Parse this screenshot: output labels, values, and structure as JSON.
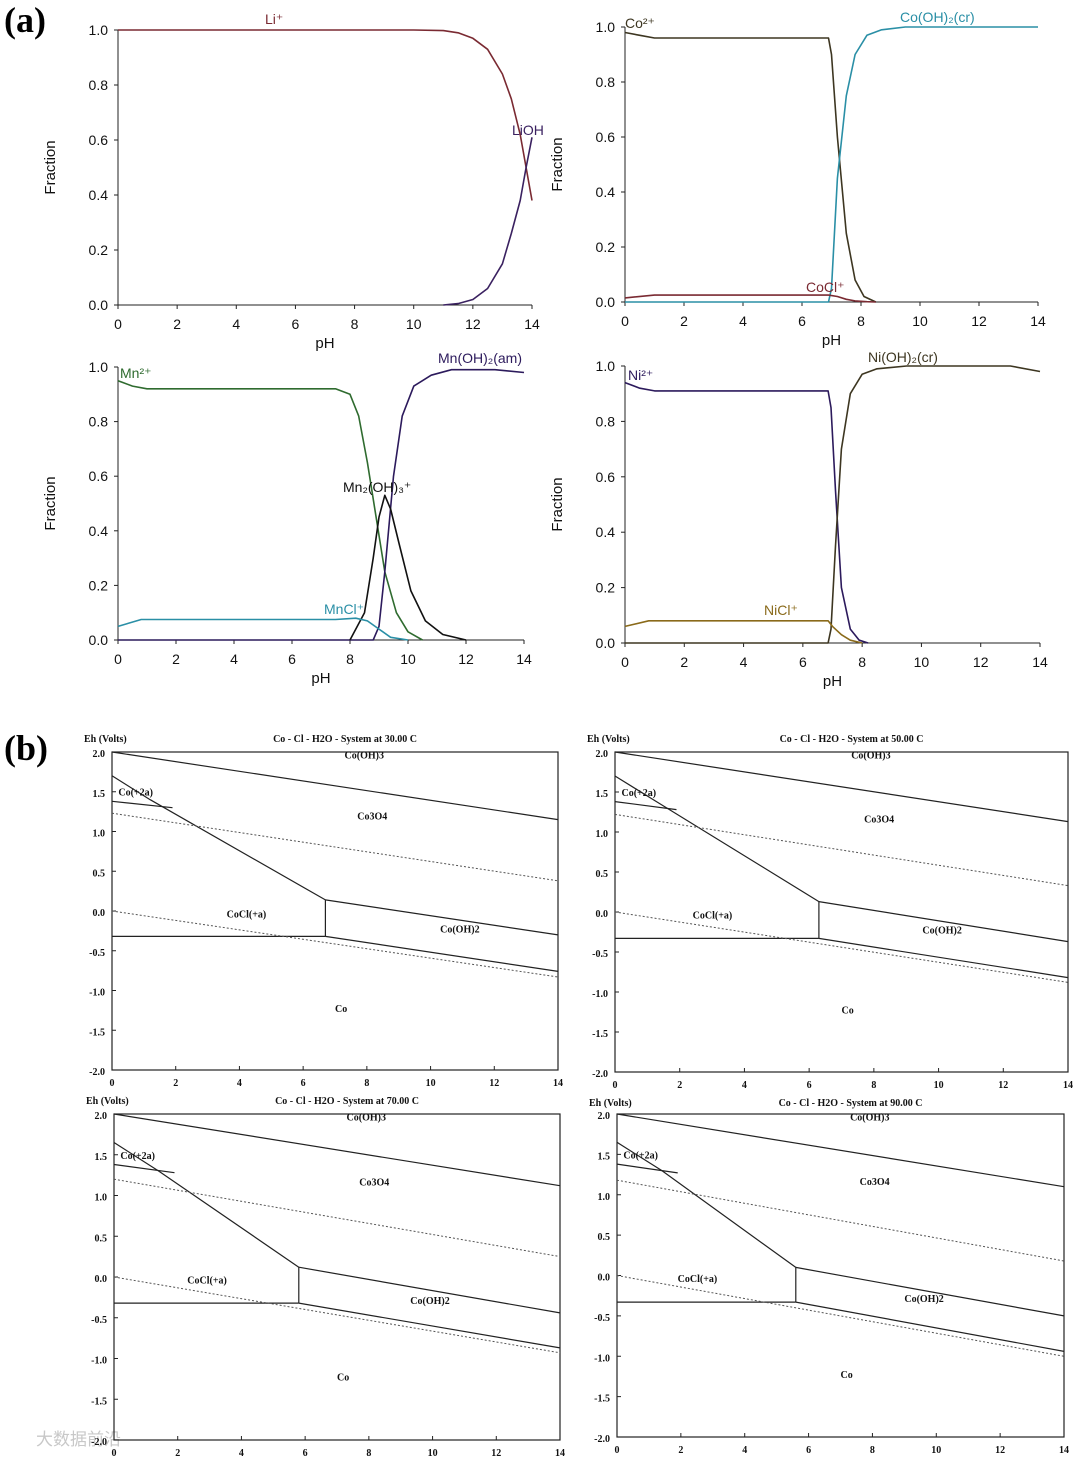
{
  "figure": {
    "panel_a_label": "(a)",
    "panel_b_label": "(b)",
    "watermark": "大数据前沿"
  },
  "chart_data": [
    {
      "id": "a1",
      "type": "line",
      "xlabel": "pH",
      "ylabel": "Fraction",
      "xlim": [
        0,
        14
      ],
      "ylim": [
        0,
        1
      ],
      "xticks": [
        "0",
        "2",
        "4",
        "6",
        "8",
        "10",
        "12",
        "14"
      ],
      "yticks": [
        "0.0",
        "0.2",
        "0.4",
        "0.6",
        "0.8",
        "1.0"
      ],
      "series": [
        {
          "name": "Li⁺",
          "color": "#7a2a32",
          "x": [
            0,
            10,
            11,
            11.5,
            12,
            12.5,
            13,
            13.3,
            13.6,
            13.8,
            14
          ],
          "y": [
            1.0,
            1.0,
            0.998,
            0.99,
            0.97,
            0.93,
            0.84,
            0.75,
            0.62,
            0.5,
            0.38
          ]
        },
        {
          "name": "LiOH",
          "color": "#3a2160",
          "x": [
            11,
            11.5,
            12,
            12.5,
            13,
            13.3,
            13.6,
            13.8,
            14
          ],
          "y": [
            0.0,
            0.005,
            0.02,
            0.06,
            0.15,
            0.26,
            0.38,
            0.5,
            0.61
          ]
        }
      ]
    },
    {
      "id": "a2",
      "type": "line",
      "xlabel": "pH",
      "ylabel": "Fraction",
      "xlim": [
        0,
        14
      ],
      "ylim": [
        0,
        1
      ],
      "xticks": [
        "0",
        "2",
        "4",
        "6",
        "8",
        "10",
        "12",
        "14"
      ],
      "yticks": [
        "0.0",
        "0.2",
        "0.4",
        "0.6",
        "0.8",
        "1.0"
      ],
      "series": [
        {
          "name": "Co²⁺",
          "color": "#3d3621",
          "x": [
            0,
            0.5,
            1,
            6.9,
            7.0,
            7.2,
            7.5,
            7.8,
            8.1,
            8.5
          ],
          "y": [
            0.98,
            0.97,
            0.96,
            0.96,
            0.9,
            0.6,
            0.25,
            0.08,
            0.02,
            0.0
          ]
        },
        {
          "name": "Co(OH)₂(cr)",
          "color": "#2a8fa6",
          "x": [
            0,
            6.9,
            7.0,
            7.2,
            7.5,
            7.8,
            8.2,
            8.7,
            9.5,
            14
          ],
          "y": [
            0.0,
            0.0,
            0.05,
            0.45,
            0.75,
            0.9,
            0.97,
            0.99,
            1.0,
            1.0
          ]
        },
        {
          "name": "CoCl⁺",
          "color": "#7a2a32",
          "x": [
            0,
            1,
            6.9,
            7.2,
            7.5,
            7.8,
            8.2,
            8.5
          ],
          "y": [
            0.015,
            0.025,
            0.025,
            0.02,
            0.01,
            0.004,
            0.001,
            0.0
          ]
        }
      ]
    },
    {
      "id": "a3",
      "type": "line",
      "xlabel": "pH",
      "ylabel": "Fraction",
      "xlim": [
        0,
        14
      ],
      "ylim": [
        0,
        1
      ],
      "xticks": [
        "0",
        "2",
        "4",
        "6",
        "8",
        "10",
        "12",
        "14"
      ],
      "yticks": [
        "0.0",
        "0.2",
        "0.4",
        "0.6",
        "0.8",
        "1.0"
      ],
      "series": [
        {
          "name": "Mn²⁺",
          "color": "#2f6b2f",
          "x": [
            0,
            0.5,
            1,
            7.5,
            8,
            8.3,
            8.6,
            8.9,
            9.2,
            9.6,
            10,
            10.5
          ],
          "y": [
            0.95,
            0.93,
            0.92,
            0.92,
            0.9,
            0.82,
            0.65,
            0.45,
            0.25,
            0.1,
            0.03,
            0.0
          ]
        },
        {
          "name": "Mn(OH)₂(am)",
          "color": "#2c1a5c",
          "x": [
            0,
            8.8,
            9.0,
            9.2,
            9.5,
            9.8,
            10.2,
            10.8,
            11.5,
            13,
            14
          ],
          "y": [
            0.0,
            0.0,
            0.05,
            0.25,
            0.6,
            0.82,
            0.93,
            0.97,
            0.99,
            0.99,
            0.98
          ]
        },
        {
          "name": "Mn₂(OH)₃⁺",
          "color": "#111111",
          "x": [
            8,
            8.5,
            8.8,
            9.0,
            9.2,
            9.4,
            9.7,
            10.1,
            10.6,
            11.2,
            12
          ],
          "y": [
            0.0,
            0.1,
            0.3,
            0.45,
            0.53,
            0.48,
            0.35,
            0.18,
            0.07,
            0.02,
            0.0
          ]
        },
        {
          "name": "MnCl⁺",
          "color": "#2a8fa6",
          "x": [
            0,
            0.8,
            7.5,
            8.2,
            8.6,
            9.0,
            9.4,
            10
          ],
          "y": [
            0.05,
            0.075,
            0.075,
            0.08,
            0.07,
            0.04,
            0.01,
            0.0
          ]
        }
      ]
    },
    {
      "id": "a4",
      "type": "line",
      "xlabel": "pH",
      "ylabel": "Fraction",
      "xlim": [
        0,
        14
      ],
      "ylim": [
        0,
        1
      ],
      "xticks": [
        "0",
        "2",
        "4",
        "6",
        "8",
        "10",
        "12",
        "14"
      ],
      "yticks": [
        "0.0",
        "0.2",
        "0.4",
        "0.6",
        "0.8",
        "1.0"
      ],
      "series": [
        {
          "name": "Ni²⁺",
          "color": "#2c1a5c",
          "x": [
            0,
            0.5,
            1,
            6.85,
            6.95,
            7.1,
            7.3,
            7.6,
            7.9,
            8.2
          ],
          "y": [
            0.94,
            0.92,
            0.91,
            0.91,
            0.85,
            0.55,
            0.2,
            0.05,
            0.01,
            0.0
          ]
        },
        {
          "name": "Ni(OH)₂(cr)",
          "color": "#3d3621",
          "x": [
            0,
            6.85,
            6.95,
            7.1,
            7.3,
            7.6,
            8.0,
            8.5,
            9.5,
            13,
            14
          ],
          "y": [
            0.0,
            0.0,
            0.05,
            0.35,
            0.7,
            0.9,
            0.97,
            0.99,
            1.0,
            1.0,
            0.98
          ]
        },
        {
          "name": "NiCl⁺",
          "color": "#8a6a1a",
          "x": [
            0,
            0.8,
            6.85,
            7.0,
            7.3,
            7.6,
            8.0
          ],
          "y": [
            0.06,
            0.08,
            0.08,
            0.06,
            0.03,
            0.01,
            0.0
          ]
        }
      ]
    },
    {
      "id": "b1",
      "type": "line",
      "title": "Co - Cl - H2O - System at 30.00 C",
      "ylabel": "Eh (Volts)",
      "xlim": [
        0,
        14
      ],
      "ylim": [
        -2,
        2
      ],
      "xticks": [
        "0",
        "2",
        "4",
        "6",
        "8",
        "10",
        "12",
        "14"
      ],
      "yticks": [
        "2.0",
        "1.5",
        "1.0",
        "0.5",
        "0.0",
        "-0.5",
        "-1.0",
        "-1.5",
        "-2.0"
      ],
      "region_labels": [
        {
          "text": "Co(OH)3",
          "x": 7.3,
          "y": 1.92
        },
        {
          "text": "Co(+2a)",
          "x": 0.2,
          "y": 1.45
        },
        {
          "text": "Co3O4",
          "x": 7.7,
          "y": 1.15
        },
        {
          "text": "CoCl(+a)",
          "x": 3.6,
          "y": -0.08
        },
        {
          "text": "Co(OH)2",
          "x": 10.3,
          "y": -0.27
        },
        {
          "text": "Co",
          "x": 7,
          "y": -1.27
        }
      ],
      "lines": [
        {
          "style": "solid",
          "x": [
            0,
            14
          ],
          "y": [
            2.0,
            1.15
          ]
        },
        {
          "style": "solid",
          "x": [
            0,
            1.2,
            6.7
          ],
          "y": [
            1.7,
            1.4,
            0.14
          ]
        },
        {
          "style": "solid",
          "x": [
            0,
            1.9
          ],
          "y": [
            1.38,
            1.3
          ]
        },
        {
          "style": "solid",
          "x": [
            6.7,
            14
          ],
          "y": [
            0.14,
            -0.3
          ]
        },
        {
          "style": "solid",
          "x": [
            6.7,
            6.7
          ],
          "y": [
            0.14,
            -0.32
          ]
        },
        {
          "style": "solid",
          "x": [
            0,
            6.7
          ],
          "y": [
            -0.32,
            -0.32
          ]
        },
        {
          "style": "solid",
          "x": [
            6.7,
            14
          ],
          "y": [
            -0.32,
            -0.76
          ]
        },
        {
          "style": "dotted",
          "x": [
            0,
            14
          ],
          "y": [
            1.23,
            0.38
          ]
        },
        {
          "style": "dotted",
          "x": [
            0,
            14
          ],
          "y": [
            0.0,
            -0.83
          ]
        }
      ]
    },
    {
      "id": "b2",
      "type": "line",
      "title": "Co - Cl - H2O - System at 50.00 C",
      "ylabel": "Eh (Volts)",
      "xlim": [
        0,
        14
      ],
      "ylim": [
        -2,
        2
      ],
      "xticks": [
        "0",
        "2",
        "4",
        "6",
        "8",
        "10",
        "12",
        "14"
      ],
      "yticks": [
        "2.0",
        "1.5",
        "1.0",
        "0.5",
        "0.0",
        "-0.5",
        "-1.0",
        "-1.5",
        "-2.0"
      ],
      "region_labels": [
        {
          "text": "Co(OH)3",
          "x": 7.3,
          "y": 1.92
        },
        {
          "text": "Co(+2a)",
          "x": 0.2,
          "y": 1.45
        },
        {
          "text": "Co3O4",
          "x": 7.7,
          "y": 1.12
        },
        {
          "text": "CoCl(+a)",
          "x": 2.4,
          "y": -0.08
        },
        {
          "text": "Co(OH)2",
          "x": 9.5,
          "y": -0.27
        },
        {
          "text": "Co",
          "x": 7,
          "y": -1.27
        }
      ],
      "lines": [
        {
          "style": "solid",
          "x": [
            0,
            14
          ],
          "y": [
            2.0,
            1.13
          ]
        },
        {
          "style": "solid",
          "x": [
            0,
            1.2,
            6.3
          ],
          "y": [
            1.7,
            1.4,
            0.13
          ]
        },
        {
          "style": "solid",
          "x": [
            0,
            1.9
          ],
          "y": [
            1.38,
            1.28
          ]
        },
        {
          "style": "solid",
          "x": [
            6.3,
            14
          ],
          "y": [
            0.13,
            -0.37
          ]
        },
        {
          "style": "solid",
          "x": [
            6.3,
            6.3
          ],
          "y": [
            0.13,
            -0.33
          ]
        },
        {
          "style": "solid",
          "x": [
            0,
            6.3
          ],
          "y": [
            -0.33,
            -0.33
          ]
        },
        {
          "style": "solid",
          "x": [
            6.3,
            14
          ],
          "y": [
            -0.33,
            -0.82
          ]
        },
        {
          "style": "dotted",
          "x": [
            0,
            14
          ],
          "y": [
            1.22,
            0.33
          ]
        },
        {
          "style": "dotted",
          "x": [
            0,
            14
          ],
          "y": [
            0.0,
            -0.88
          ]
        }
      ]
    },
    {
      "id": "b3",
      "type": "line",
      "title": "Co - Cl - H2O - System at 70.00 C",
      "ylabel": "Eh (Volts)",
      "xlim": [
        0,
        14
      ],
      "ylim": [
        -2,
        2
      ],
      "xticks": [
        "0",
        "2",
        "4",
        "6",
        "8",
        "10",
        "12",
        "14"
      ],
      "yticks": [
        "2.0",
        "1.5",
        "1.0",
        "0.5",
        "0.0",
        "-0.5",
        "-1.0",
        "-1.5",
        "-2.0"
      ],
      "region_labels": [
        {
          "text": "Co(OH)3",
          "x": 7.3,
          "y": 1.92
        },
        {
          "text": "Co(+2a)",
          "x": 0.2,
          "y": 1.45
        },
        {
          "text": "Co3O4",
          "x": 7.7,
          "y": 1.12
        },
        {
          "text": "CoCl(+a)",
          "x": 2.3,
          "y": -0.08
        },
        {
          "text": "Co(OH)2",
          "x": 9.3,
          "y": -0.33
        },
        {
          "text": "Co",
          "x": 7,
          "y": -1.27
        }
      ],
      "lines": [
        {
          "style": "solid",
          "x": [
            0,
            14
          ],
          "y": [
            2.0,
            1.12
          ]
        },
        {
          "style": "solid",
          "x": [
            0,
            1.4,
            5.8
          ],
          "y": [
            1.65,
            1.3,
            0.12
          ]
        },
        {
          "style": "solid",
          "x": [
            0,
            1.9
          ],
          "y": [
            1.38,
            1.28
          ]
        },
        {
          "style": "solid",
          "x": [
            5.8,
            14
          ],
          "y": [
            0.12,
            -0.44
          ]
        },
        {
          "style": "solid",
          "x": [
            5.8,
            5.8
          ],
          "y": [
            0.12,
            -0.32
          ]
        },
        {
          "style": "solid",
          "x": [
            0,
            5.8
          ],
          "y": [
            -0.32,
            -0.32
          ]
        },
        {
          "style": "solid",
          "x": [
            5.8,
            14
          ],
          "y": [
            -0.32,
            -0.87
          ]
        },
        {
          "style": "dotted",
          "x": [
            0,
            14
          ],
          "y": [
            1.2,
            0.25
          ]
        },
        {
          "style": "dotted",
          "x": [
            0,
            14
          ],
          "y": [
            0.0,
            -0.93
          ]
        }
      ]
    },
    {
      "id": "b4",
      "type": "line",
      "title": "Co - Cl - H2O - System at 90.00 C",
      "ylabel": "Eh (Volts)",
      "xlim": [
        0,
        14
      ],
      "ylim": [
        -2,
        2
      ],
      "xticks": [
        "0",
        "2",
        "4",
        "6",
        "8",
        "10",
        "12",
        "14"
      ],
      "yticks": [
        "2.0",
        "1.5",
        "1.0",
        "0.5",
        "0.0",
        "-0.5",
        "-1.0",
        "-1.5",
        "-2.0"
      ],
      "region_labels": [
        {
          "text": "Co(OH)3",
          "x": 7.3,
          "y": 1.92
        },
        {
          "text": "Co(+2a)",
          "x": 0.2,
          "y": 1.45
        },
        {
          "text": "Co3O4",
          "x": 7.6,
          "y": 1.12
        },
        {
          "text": "CoCl(+a)",
          "x": 1.9,
          "y": -0.08
        },
        {
          "text": "Co(OH)2",
          "x": 9.0,
          "y": -0.33
        },
        {
          "text": "Co",
          "x": 7,
          "y": -1.27
        }
      ],
      "lines": [
        {
          "style": "solid",
          "x": [
            0,
            14
          ],
          "y": [
            2.0,
            1.1
          ]
        },
        {
          "style": "solid",
          "x": [
            0,
            1.4,
            5.6
          ],
          "y": [
            1.65,
            1.3,
            0.1
          ]
        },
        {
          "style": "solid",
          "x": [
            0,
            1.9
          ],
          "y": [
            1.38,
            1.27
          ]
        },
        {
          "style": "solid",
          "x": [
            5.6,
            14
          ],
          "y": [
            0.1,
            -0.5
          ]
        },
        {
          "style": "solid",
          "x": [
            5.6,
            5.6
          ],
          "y": [
            0.1,
            -0.33
          ]
        },
        {
          "style": "solid",
          "x": [
            0,
            5.6
          ],
          "y": [
            -0.33,
            -0.33
          ]
        },
        {
          "style": "solid",
          "x": [
            5.6,
            14
          ],
          "y": [
            -0.33,
            -0.94
          ]
        },
        {
          "style": "dotted",
          "x": [
            0,
            14
          ],
          "y": [
            1.18,
            0.18
          ]
        },
        {
          "style": "dotted",
          "x": [
            0,
            14
          ],
          "y": [
            0.0,
            -1.0
          ]
        }
      ]
    }
  ]
}
